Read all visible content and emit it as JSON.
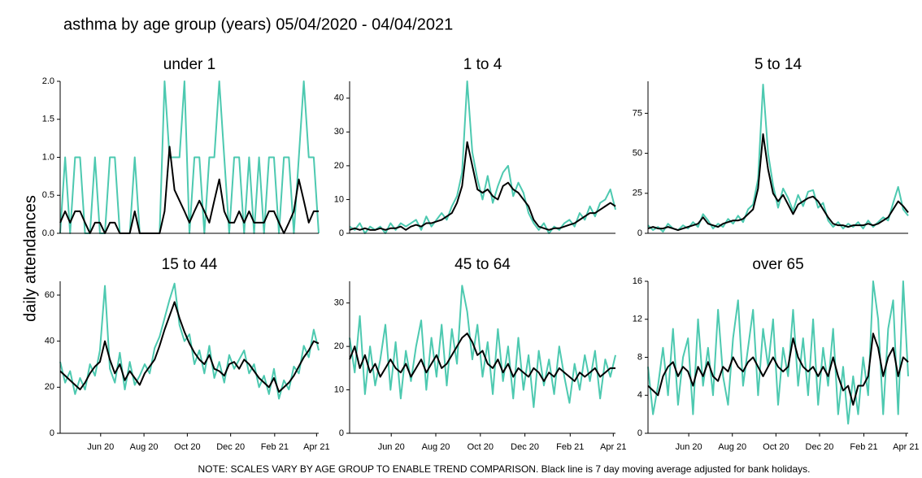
{
  "title": "asthma by age group (years) 05/04/2020 - 04/04/2021",
  "y_label": "daily attendances",
  "note": "NOTE: SCALES VARY BY AGE GROUP TO ENABLE TREND COMPARISON. Black line is 7 day moving average adjusted for bank holidays.",
  "chart_data": [
    {
      "type": "line",
      "title": "under 1",
      "x": [
        0,
        7,
        14,
        21,
        28,
        35,
        42,
        49,
        56,
        63,
        70,
        77,
        84,
        91,
        98,
        105,
        112,
        119,
        126,
        133,
        140,
        147,
        154,
        161,
        168,
        175,
        182,
        189,
        196,
        203,
        210,
        217,
        224,
        231,
        238,
        245,
        252,
        259,
        266,
        273,
        280,
        287,
        294,
        301,
        308,
        315,
        322,
        329,
        336,
        343,
        350,
        357,
        364
      ],
      "xlim": [
        0,
        364
      ],
      "ylim": [
        0,
        2
      ],
      "yticks": [
        {
          "value": 0,
          "label": "0.0"
        },
        {
          "value": 0.5,
          "label": "0.5"
        },
        {
          "value": 1,
          "label": "1.0"
        },
        {
          "value": 1.5,
          "label": "1.5"
        },
        {
          "value": 2,
          "label": "2.0"
        }
      ],
      "series": [
        {
          "color": "#4dc9b0",
          "values": [
            0,
            1,
            0,
            1,
            1,
            0,
            0,
            1,
            0,
            0,
            1,
            1,
            0,
            0,
            0,
            1,
            0,
            0,
            0,
            0,
            0,
            2,
            1,
            1,
            1,
            2,
            0,
            1,
            1,
            0,
            1,
            1,
            2,
            1,
            0,
            1,
            1,
            0,
            1,
            0,
            1,
            0,
            1,
            1,
            0,
            1,
            1,
            0,
            1,
            2,
            1,
            1,
            0
          ]
        },
        {
          "color": "#000000",
          "values": [
            0.14,
            0.29,
            0.14,
            0.29,
            0.29,
            0.14,
            0,
            0.14,
            0.14,
            0,
            0.14,
            0.14,
            0,
            0,
            0,
            0.29,
            0,
            0,
            0,
            0,
            0,
            0.29,
            1.14,
            0.57,
            0.43,
            0.29,
            0.14,
            0.29,
            0.43,
            0.29,
            0.14,
            0.43,
            0.71,
            0.29,
            0.14,
            0.14,
            0.29,
            0.14,
            0.29,
            0.14,
            0.14,
            0.14,
            0.29,
            0.29,
            0.14,
            0,
            0.14,
            0.29,
            0.71,
            0.43,
            0.14,
            0.29,
            0.29
          ]
        }
      ]
    },
    {
      "type": "line",
      "title": "1 to 4",
      "x": [
        0,
        7,
        14,
        21,
        28,
        35,
        42,
        49,
        56,
        63,
        70,
        77,
        84,
        91,
        98,
        105,
        112,
        119,
        126,
        133,
        140,
        147,
        154,
        161,
        168,
        175,
        182,
        189,
        196,
        203,
        210,
        217,
        224,
        231,
        238,
        245,
        252,
        259,
        266,
        273,
        280,
        287,
        294,
        301,
        308,
        315,
        322,
        329,
        336,
        343,
        350,
        357,
        364
      ],
      "xlim": [
        0,
        364
      ],
      "ylim": [
        0,
        45
      ],
      "yticks": [
        0,
        10,
        20,
        30,
        40
      ],
      "series": [
        {
          "color": "#4dc9b0",
          "values": [
            2,
            1,
            3,
            0,
            2,
            1,
            2,
            0,
            3,
            1,
            3,
            2,
            3,
            4,
            1,
            5,
            2,
            4,
            6,
            4,
            8,
            11,
            18,
            45,
            24,
            16,
            10,
            17,
            9,
            14,
            18,
            20,
            11,
            15,
            12,
            6,
            3,
            1,
            3,
            0,
            2,
            1,
            3,
            4,
            2,
            6,
            4,
            8,
            5,
            9,
            10,
            13,
            7
          ]
        },
        {
          "color": "#000000",
          "values": [
            1,
            1.5,
            1,
            1.5,
            1,
            1,
            1.5,
            1,
            1.5,
            1.5,
            2,
            1,
            2,
            2.5,
            2,
            3,
            3,
            3.5,
            4,
            5,
            6,
            9,
            14,
            27,
            20,
            13,
            12,
            13,
            11,
            10,
            14,
            15,
            13,
            12,
            10,
            8,
            4,
            2,
            1.5,
            1,
            1.5,
            1.5,
            2,
            2.5,
            3,
            4,
            5,
            6,
            6,
            7,
            8,
            9,
            8
          ]
        }
      ]
    },
    {
      "type": "line",
      "title": "5 to 14",
      "x": [
        0,
        7,
        14,
        21,
        28,
        35,
        42,
        49,
        56,
        63,
        70,
        77,
        84,
        91,
        98,
        105,
        112,
        119,
        126,
        133,
        140,
        147,
        154,
        161,
        168,
        175,
        182,
        189,
        196,
        203,
        210,
        217,
        224,
        231,
        238,
        245,
        252,
        259,
        266,
        273,
        280,
        287,
        294,
        301,
        308,
        315,
        322,
        329,
        336,
        343,
        350,
        357,
        364
      ],
      "xlim": [
        0,
        364
      ],
      "ylim": [
        0,
        95
      ],
      "yticks": [
        0,
        25,
        50,
        75
      ],
      "series": [
        {
          "color": "#4dc9b0",
          "values": [
            5,
            2,
            4,
            1,
            6,
            3,
            2,
            5,
            3,
            7,
            4,
            12,
            8,
            3,
            6,
            4,
            9,
            6,
            11,
            7,
            15,
            18,
            34,
            93,
            50,
            30,
            16,
            28,
            22,
            14,
            24,
            17,
            26,
            27,
            16,
            19,
            8,
            4,
            7,
            3,
            6,
            4,
            7,
            3,
            8,
            4,
            7,
            10,
            8,
            19,
            29,
            15,
            11
          ]
        },
        {
          "color": "#000000",
          "values": [
            3,
            4,
            3,
            3,
            4,
            3,
            2,
            3,
            4,
            5,
            6,
            10,
            6,
            5,
            4,
            6,
            7,
            8,
            8,
            9,
            12,
            15,
            28,
            62,
            40,
            25,
            20,
            24,
            18,
            12,
            18,
            20,
            22,
            23,
            20,
            15,
            10,
            6,
            5,
            5,
            4,
            5,
            5,
            5,
            6,
            5,
            6,
            8,
            10,
            15,
            20,
            17,
            13
          ]
        }
      ]
    },
    {
      "type": "line",
      "title": "15 to 44",
      "x": [
        0,
        7,
        14,
        21,
        28,
        35,
        42,
        49,
        56,
        63,
        70,
        77,
        84,
        91,
        98,
        105,
        112,
        119,
        126,
        133,
        140,
        147,
        154,
        161,
        168,
        175,
        182,
        189,
        196,
        203,
        210,
        217,
        224,
        231,
        238,
        245,
        252,
        259,
        266,
        273,
        280,
        287,
        294,
        301,
        308,
        315,
        322,
        329,
        336,
        343,
        350,
        357,
        364
      ],
      "xlim": [
        0,
        364
      ],
      "ylim": [
        0,
        66
      ],
      "yticks": [
        0,
        20,
        40,
        60
      ],
      "xticks": [
        {
          "value": 57,
          "label": "Jun 20"
        },
        {
          "value": 118,
          "label": "Aug 20"
        },
        {
          "value": 179,
          "label": "Oct 20"
        },
        {
          "value": 240,
          "label": "Dec 20"
        },
        {
          "value": 302,
          "label": "Feb 21"
        },
        {
          "value": 361,
          "label": "Apr 21"
        }
      ],
      "series": [
        {
          "color": "#4dc9b0",
          "values": [
            31,
            22,
            27,
            17,
            24,
            19,
            30,
            25,
            36,
            64,
            28,
            22,
            35,
            19,
            31,
            21,
            25,
            30,
            26,
            37,
            42,
            50,
            58,
            65,
            47,
            40,
            43,
            30,
            36,
            26,
            38,
            24,
            31,
            22,
            34,
            28,
            32,
            36,
            26,
            30,
            20,
            25,
            17,
            28,
            15,
            23,
            19,
            29,
            26,
            38,
            33,
            45,
            36
          ]
        },
        {
          "color": "#000000",
          "values": [
            27,
            25,
            23,
            21,
            19,
            22,
            26,
            29,
            31,
            40,
            32,
            26,
            30,
            23,
            27,
            24,
            21,
            26,
            29,
            32,
            38,
            45,
            51,
            57,
            50,
            44,
            39,
            35,
            32,
            30,
            34,
            28,
            27,
            25,
            30,
            31,
            28,
            32,
            30,
            27,
            24,
            22,
            20,
            24,
            18,
            20,
            22,
            25,
            29,
            33,
            36,
            40,
            39
          ]
        }
      ]
    },
    {
      "type": "line",
      "title": "45 to 64",
      "x": [
        0,
        7,
        14,
        21,
        28,
        35,
        42,
        49,
        56,
        63,
        70,
        77,
        84,
        91,
        98,
        105,
        112,
        119,
        126,
        133,
        140,
        147,
        154,
        161,
        168,
        175,
        182,
        189,
        196,
        203,
        210,
        217,
        224,
        231,
        238,
        245,
        252,
        259,
        266,
        273,
        280,
        287,
        294,
        301,
        308,
        315,
        322,
        329,
        336,
        343,
        350,
        357,
        364
      ],
      "xlim": [
        0,
        364
      ],
      "ylim": [
        0,
        35
      ],
      "yticks": [
        0,
        10,
        20,
        30
      ],
      "xticks": [
        {
          "value": 57,
          "label": "Jun 20"
        },
        {
          "value": 118,
          "label": "Aug 20"
        },
        {
          "value": 179,
          "label": "Oct 20"
        },
        {
          "value": 240,
          "label": "Dec 20"
        },
        {
          "value": 302,
          "label": "Feb 21"
        },
        {
          "value": 361,
          "label": "Apr 21"
        }
      ],
      "series": [
        {
          "color": "#4dc9b0",
          "values": [
            22,
            14,
            27,
            9,
            20,
            11,
            17,
            25,
            10,
            21,
            8,
            19,
            12,
            20,
            26,
            10,
            22,
            13,
            25,
            11,
            24,
            16,
            34,
            28,
            17,
            25,
            13,
            21,
            9,
            24,
            12,
            20,
            8,
            22,
            10,
            18,
            6,
            19,
            11,
            17,
            9,
            20,
            13,
            7,
            16,
            10,
            18,
            12,
            19,
            8,
            17,
            13,
            18
          ]
        },
        {
          "color": "#000000",
          "values": [
            17,
            20,
            15,
            18,
            14,
            16,
            13,
            15,
            17,
            15,
            14,
            16,
            13,
            15,
            17,
            14,
            16,
            18,
            15,
            16,
            18,
            20,
            22,
            23,
            21,
            18,
            19,
            16,
            15,
            17,
            14,
            16,
            13,
            15,
            14,
            13,
            15,
            14,
            12,
            14,
            13,
            15,
            14,
            13,
            12,
            14,
            13,
            14,
            15,
            13,
            14,
            15,
            15
          ]
        }
      ]
    },
    {
      "type": "line",
      "title": "over 65",
      "x": [
        0,
        7,
        14,
        21,
        28,
        35,
        42,
        49,
        56,
        63,
        70,
        77,
        84,
        91,
        98,
        105,
        112,
        119,
        126,
        133,
        140,
        147,
        154,
        161,
        168,
        175,
        182,
        189,
        196,
        203,
        210,
        217,
        224,
        231,
        238,
        245,
        252,
        259,
        266,
        273,
        280,
        287,
        294,
        301,
        308,
        315,
        322,
        329,
        336,
        343,
        350,
        357,
        364
      ],
      "xlim": [
        0,
        364
      ],
      "ylim": [
        0,
        16
      ],
      "yticks": [
        0,
        4,
        8,
        12,
        16
      ],
      "xticks": [
        {
          "value": 57,
          "label": "Jun 20"
        },
        {
          "value": 118,
          "label": "Aug 20"
        },
        {
          "value": 179,
          "label": "Oct 20"
        },
        {
          "value": 240,
          "label": "Dec 20"
        },
        {
          "value": 302,
          "label": "Feb 21"
        },
        {
          "value": 361,
          "label": "Apr 21"
        }
      ],
      "series": [
        {
          "color": "#4dc9b0",
          "values": [
            7,
            2,
            5,
            9,
            4,
            11,
            3,
            8,
            10,
            2,
            12,
            5,
            9,
            4,
            13,
            6,
            3,
            10,
            14,
            5,
            9,
            13,
            4,
            11,
            7,
            12,
            3,
            9,
            6,
            13,
            5,
            10,
            4,
            12,
            3,
            9,
            5,
            11,
            2,
            7,
            1,
            6,
            2,
            8,
            4,
            16,
            12,
            2,
            11,
            14,
            2,
            16,
            6
          ]
        },
        {
          "color": "#000000",
          "values": [
            5,
            4.5,
            4,
            6,
            7,
            7.5,
            6,
            7,
            6.5,
            5,
            7,
            6,
            7.5,
            6,
            5.5,
            7,
            6.5,
            8,
            7,
            6.5,
            7.5,
            8,
            7,
            6,
            7,
            8,
            7,
            6.5,
            7,
            10,
            8,
            7,
            6.5,
            7,
            6,
            7,
            6,
            8,
            6,
            4.5,
            5,
            3,
            5,
            5,
            6,
            10.5,
            9,
            6,
            8,
            9,
            6,
            8,
            7.5
          ]
        }
      ]
    }
  ]
}
